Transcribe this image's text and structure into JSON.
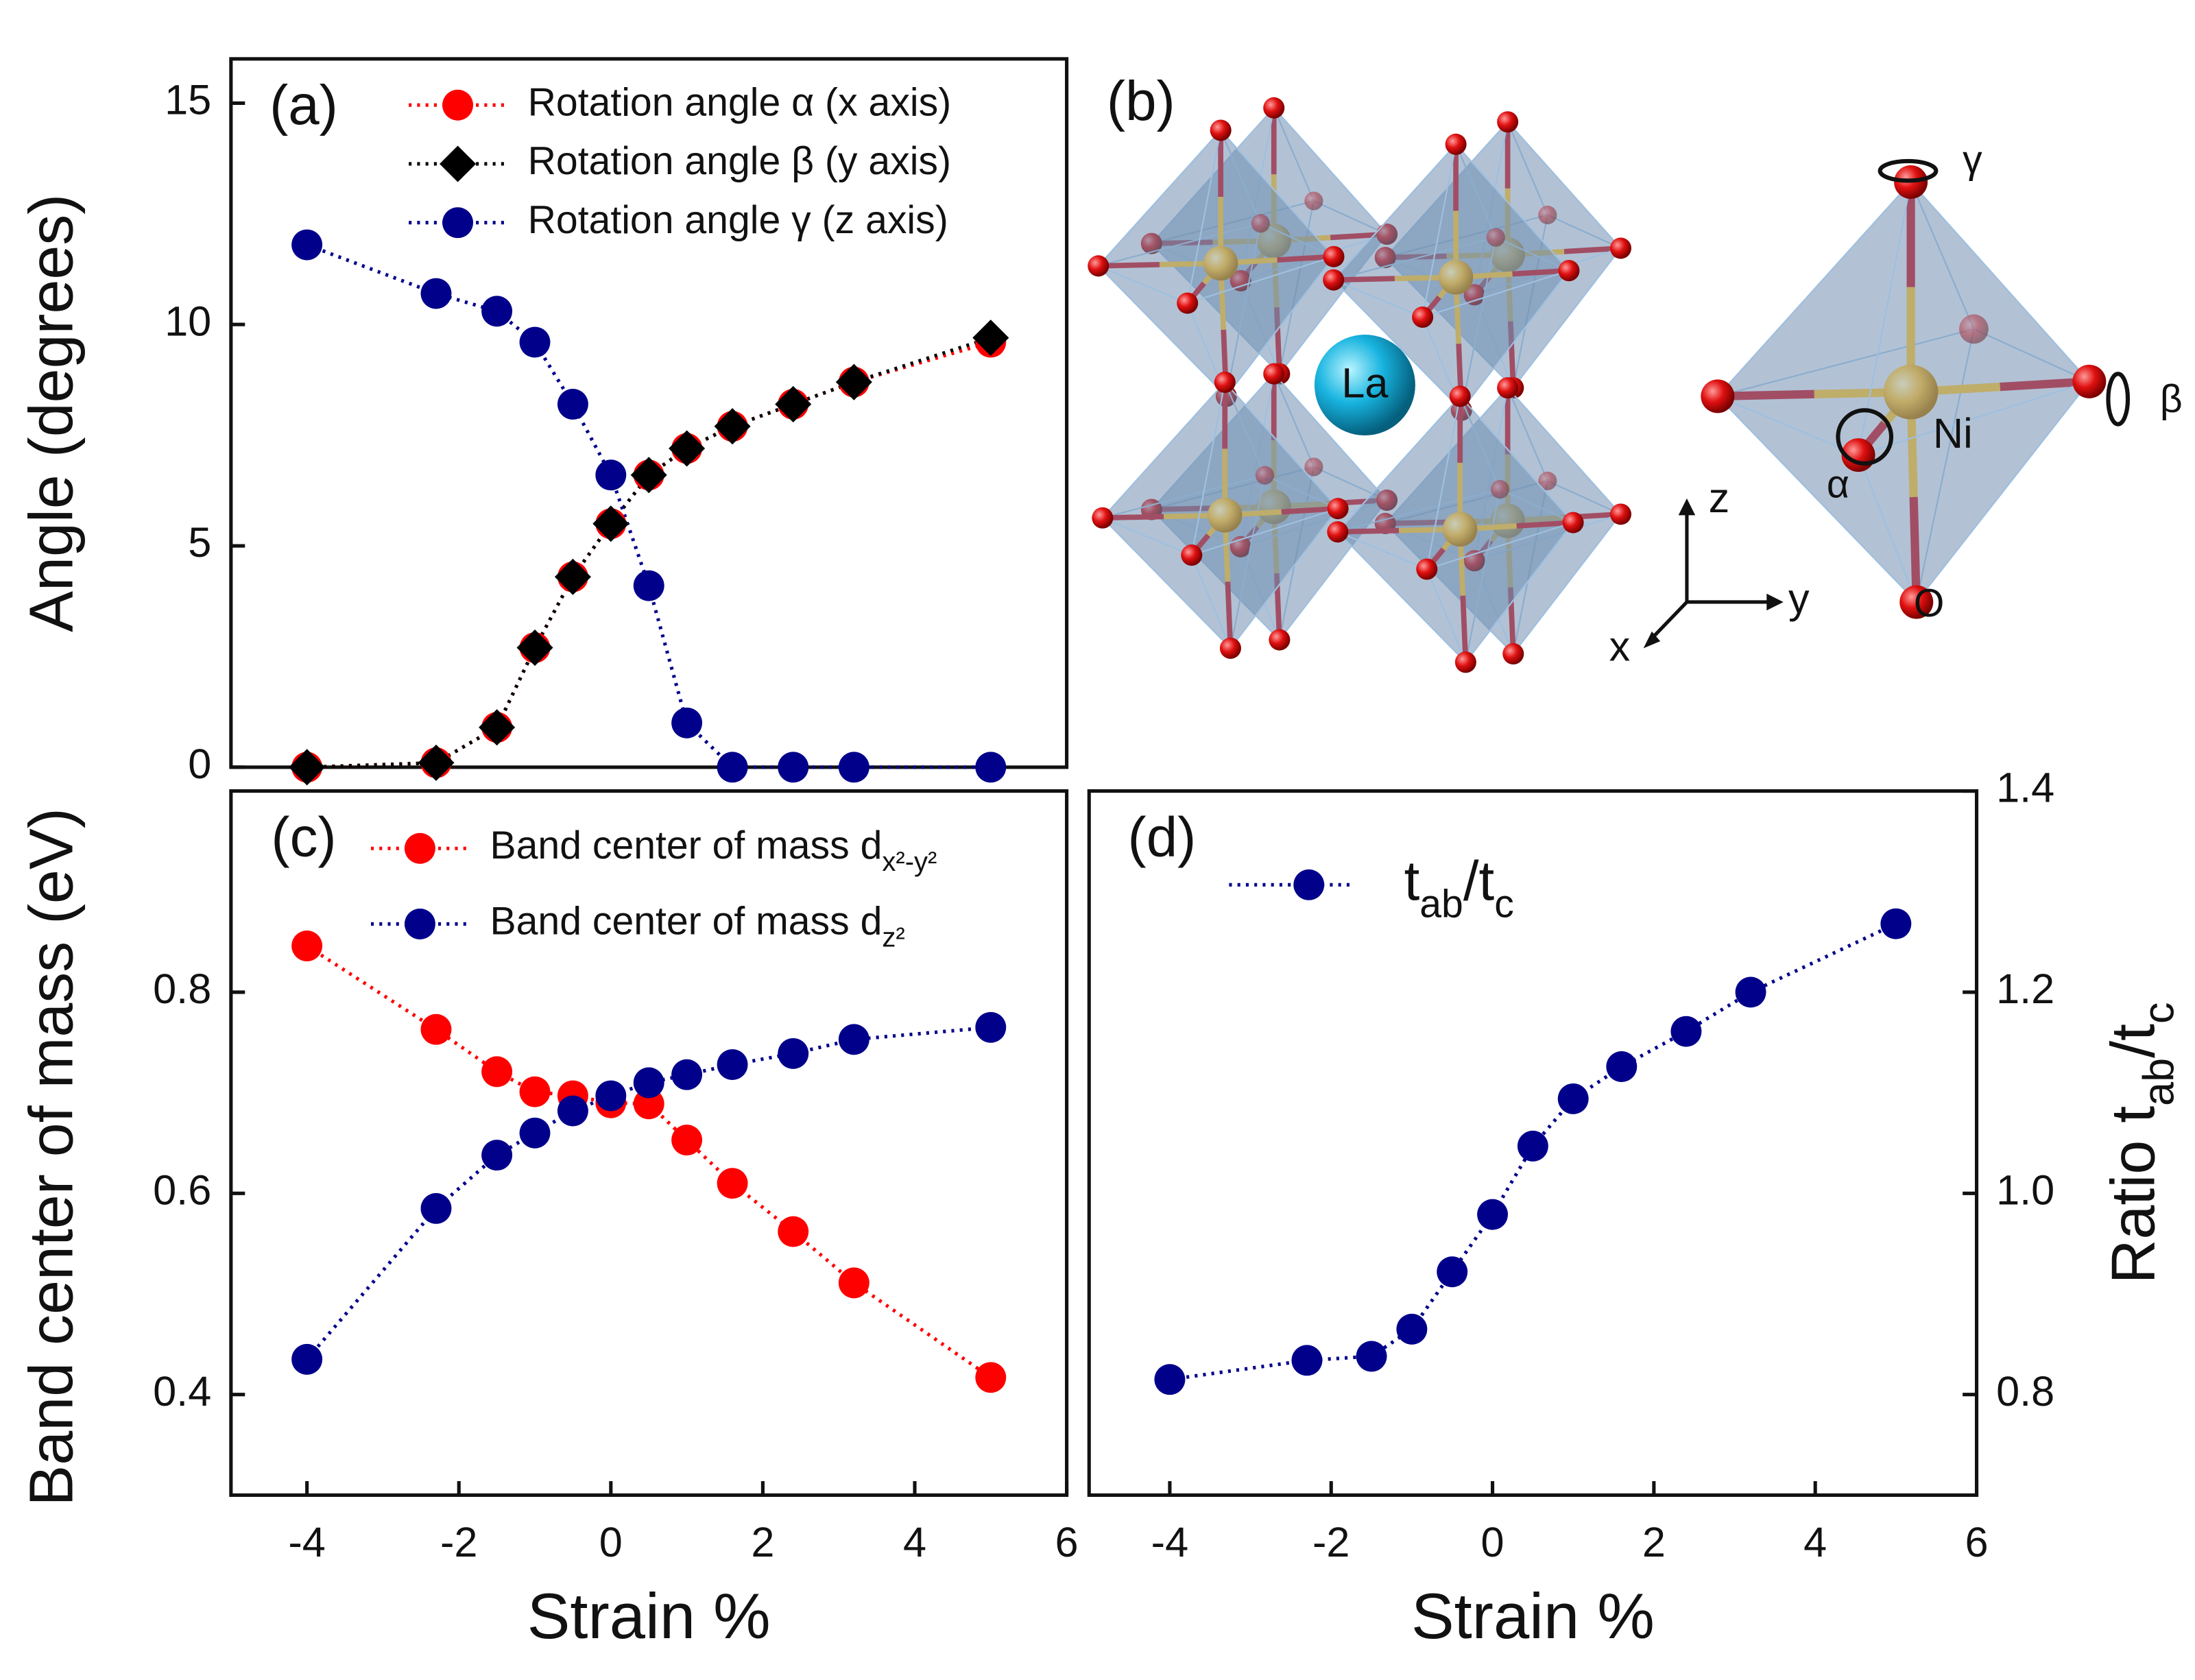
{
  "chart_data": [
    {
      "type": "line",
      "panel_label": "(a)",
      "ylabel": "Angle (degrees)",
      "x": [
        -4,
        -2.3,
        -1.5,
        -1,
        -0.5,
        0,
        0.5,
        1,
        1.6,
        2.4,
        3.2,
        5
      ],
      "xlim": [
        -5,
        6
      ],
      "ylim": [
        0,
        16
      ],
      "yticks": [
        0,
        5,
        10,
        15
      ],
      "legend": "upper right",
      "series": [
        {
          "name": "Rotation angle α (x axis)",
          "color": "#ff0000",
          "marker": "circle",
          "values": [
            0,
            0.1,
            0.9,
            2.7,
            4.3,
            5.5,
            6.6,
            7.2,
            7.7,
            8.2,
            8.7,
            9.6
          ]
        },
        {
          "name": "Rotation angle β (y axis)",
          "color": "#000000",
          "marker": "diamond",
          "values": [
            0,
            0.1,
            0.9,
            2.7,
            4.3,
            5.5,
            6.6,
            7.2,
            7.7,
            8.2,
            8.7,
            9.7
          ]
        },
        {
          "name": "Rotation angle γ (z axis)",
          "color": "#00008b",
          "marker": "circle",
          "values": [
            11.8,
            10.7,
            10.3,
            9.6,
            8.2,
            6.6,
            4.1,
            1.0,
            0,
            0,
            0,
            0
          ]
        }
      ]
    },
    {
      "type": "line",
      "panel_label": "(c)",
      "ylabel": "Band center of mass (eV)",
      "xlabel": "Strain %",
      "x": [
        -4,
        -2.3,
        -1.5,
        -1,
        -0.5,
        0,
        0.5,
        1,
        1.6,
        2.4,
        3.2,
        5
      ],
      "xlim": [
        -5,
        6
      ],
      "xticks": [
        -4,
        -2,
        0,
        2,
        4,
        6
      ],
      "ylim": [
        0.3,
        1.0
      ],
      "yticks": [
        0.4,
        0.6,
        0.8
      ],
      "legend": "upper left",
      "series": [
        {
          "name": "Band center of mass d",
          "name_sub": "x²-y²",
          "color": "#ff0000",
          "marker": "circle",
          "values": [
            0.846,
            0.763,
            0.721,
            0.701,
            0.697,
            0.69,
            0.689,
            0.653,
            0.61,
            0.562,
            0.511,
            0.417
          ]
        },
        {
          "name": "Band center of mass d",
          "name_sub": "z²",
          "color": "#00008b",
          "marker": "circle",
          "values": [
            0.435,
            0.585,
            0.638,
            0.66,
            0.682,
            0.697,
            0.71,
            0.718,
            0.728,
            0.739,
            0.753,
            0.765
          ]
        }
      ]
    },
    {
      "type": "line",
      "panel_label": "(d)",
      "y2label_parts": [
        "Ratio t",
        "ab",
        "/t",
        "c"
      ],
      "xlabel": "Strain %",
      "x": [
        -4,
        -2.3,
        -1.5,
        -1,
        -0.5,
        0,
        0.5,
        1,
        1.6,
        2.4,
        3.2,
        5
      ],
      "xlim": [
        -5,
        6
      ],
      "xticks": [
        -4,
        -2,
        0,
        2,
        4,
        6
      ],
      "y2lim": [
        0.7,
        1.4
      ],
      "y2ticks": [
        0.8,
        {
          "value": 1,
          "label": "1.0"
        },
        1.2,
        1.4
      ],
      "legend": "upper left",
      "series": [
        {
          "name_parts": [
            "t",
            "ab",
            "/t",
            "c"
          ],
          "axis": "y2",
          "color": "#00008b",
          "marker": "circle",
          "values": [
            0.815,
            0.834,
            0.838,
            0.865,
            0.922,
            0.979,
            1.047,
            1.094,
            1.126,
            1.161,
            1.2,
            1.268
          ]
        }
      ]
    }
  ],
  "structure": {
    "panel_label": "(b)",
    "atom_labels": [
      "La",
      "Ni",
      "O"
    ],
    "rotation_labels": [
      "α",
      "β",
      "γ"
    ],
    "axis_labels": [
      "x",
      "y",
      "z"
    ]
  }
}
